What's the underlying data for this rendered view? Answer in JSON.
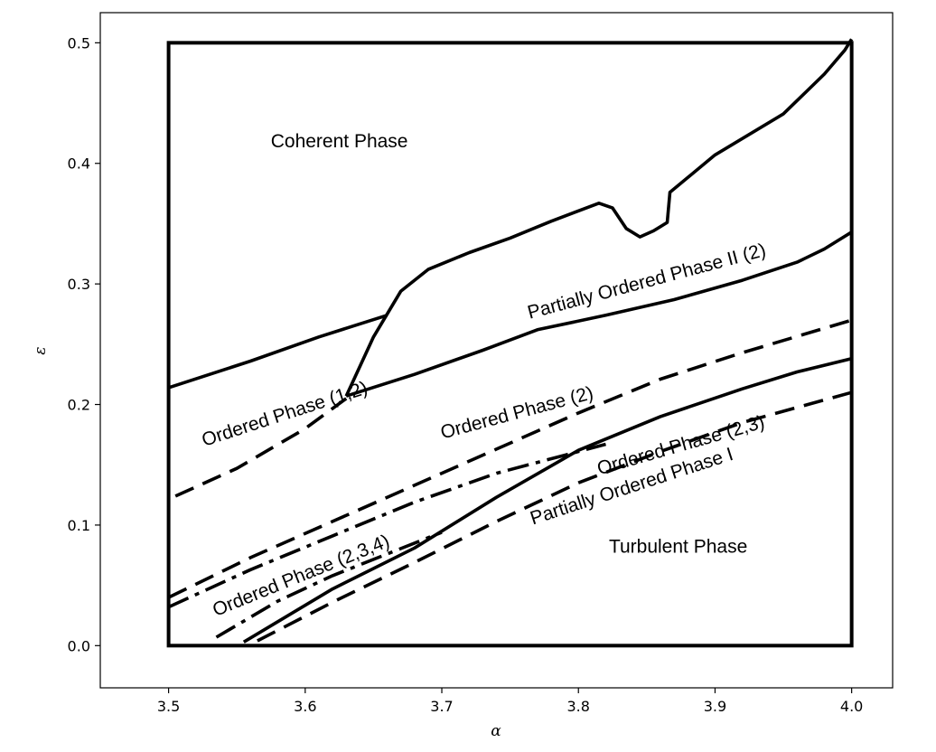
{
  "chart_data": {
    "type": "line",
    "title": "",
    "xlabel": "α",
    "ylabel": "ε",
    "xlim": [
      3.45,
      4.03
    ],
    "ylim": [
      -0.035,
      0.525
    ],
    "xticks": [
      3.5,
      3.6,
      3.7,
      3.8,
      3.9,
      4.0
    ],
    "yticks": [
      0.0,
      0.1,
      0.2,
      0.3,
      0.4,
      0.5
    ],
    "grid": false,
    "legend": "none",
    "colors": {
      "line": "#000000",
      "background": "#ffffff"
    },
    "domain_box": {
      "x": [
        3.5,
        4.0
      ],
      "y": [
        0.0,
        0.5
      ]
    },
    "series": [
      {
        "style": "solid",
        "x": [
          3.5,
          3.56,
          3.61,
          3.66
        ],
        "y": [
          0.214,
          0.236,
          0.256,
          0.274
        ]
      },
      {
        "style": "solid",
        "x": [
          3.63,
          3.65,
          3.67,
          3.69,
          3.72,
          3.75,
          3.78,
          3.815,
          3.825,
          3.835,
          3.845,
          3.855,
          3.865,
          3.867,
          3.9,
          3.95,
          3.98,
          3.995,
          4.0
        ],
        "y": [
          0.207,
          0.256,
          0.294,
          0.312,
          0.326,
          0.338,
          0.352,
          0.367,
          0.363,
          0.346,
          0.339,
          0.344,
          0.351,
          0.376,
          0.407,
          0.441,
          0.474,
          0.494,
          0.503
        ]
      },
      {
        "style": "solid",
        "x": [
          3.63,
          3.68,
          3.73,
          3.77,
          3.82,
          3.87,
          3.92,
          3.96,
          3.98,
          3.99,
          4.0
        ],
        "y": [
          0.207,
          0.225,
          0.245,
          0.262,
          0.274,
          0.287,
          0.303,
          0.318,
          0.329,
          0.336,
          0.343
        ]
      },
      {
        "style": "solid",
        "x": [
          3.555,
          3.62,
          3.68,
          3.74,
          3.8,
          3.86,
          3.92,
          3.96,
          4.0
        ],
        "y": [
          0.003,
          0.047,
          0.081,
          0.123,
          0.162,
          0.19,
          0.213,
          0.227,
          0.238
        ]
      },
      {
        "style": "dashed",
        "x": [
          3.505,
          3.55,
          3.6,
          3.63
        ],
        "y": [
          0.124,
          0.147,
          0.18,
          0.205
        ]
      },
      {
        "style": "dashed",
        "x": [
          3.5,
          3.56,
          3.62,
          3.68,
          3.74,
          3.8,
          3.86,
          3.92,
          4.0
        ],
        "y": [
          0.04,
          0.073,
          0.103,
          0.133,
          0.163,
          0.193,
          0.221,
          0.243,
          0.27
        ]
      },
      {
        "style": "dashed",
        "x": [
          3.565,
          3.62,
          3.68,
          3.74,
          3.8,
          3.86,
          3.92,
          4.0
        ],
        "y": [
          0.004,
          0.036,
          0.069,
          0.103,
          0.135,
          0.161,
          0.185,
          0.21
        ]
      },
      {
        "style": "dashdot",
        "x": [
          3.5,
          3.56,
          3.62,
          3.68,
          3.74,
          3.79,
          3.82
        ],
        "y": [
          0.032,
          0.063,
          0.091,
          0.119,
          0.143,
          0.158,
          0.167
        ]
      },
      {
        "style": "dashdot",
        "x": [
          3.535,
          3.58,
          3.62,
          3.66,
          3.7
        ],
        "y": [
          0.007,
          0.037,
          0.058,
          0.076,
          0.094
        ]
      }
    ],
    "annotations": [
      {
        "text": "Coherent Phase",
        "x": 3.625,
        "y": 0.418,
        "rotation": 0
      },
      {
        "text": "Partially Ordered Phase II (2)",
        "x": 3.85,
        "y": 0.302,
        "rotation": -15
      },
      {
        "text": "Ordered Phase (1,2)",
        "x": 3.585,
        "y": 0.192,
        "rotation": -18
      },
      {
        "text": "Ordered Phase (2)",
        "x": 3.755,
        "y": 0.193,
        "rotation": -15
      },
      {
        "text": "Ordered Phase (2,3)",
        "x": 3.875,
        "y": 0.166,
        "rotation": -16
      },
      {
        "text": "Partially Ordered Phase I",
        "x": 3.839,
        "y": 0.132,
        "rotation": -18
      },
      {
        "text": "Turbulent Phase",
        "x": 3.873,
        "y": 0.082,
        "rotation": 0
      },
      {
        "text": "Ordered Phase (2,3,4)",
        "x": 3.597,
        "y": 0.058,
        "rotation": -22
      }
    ]
  }
}
